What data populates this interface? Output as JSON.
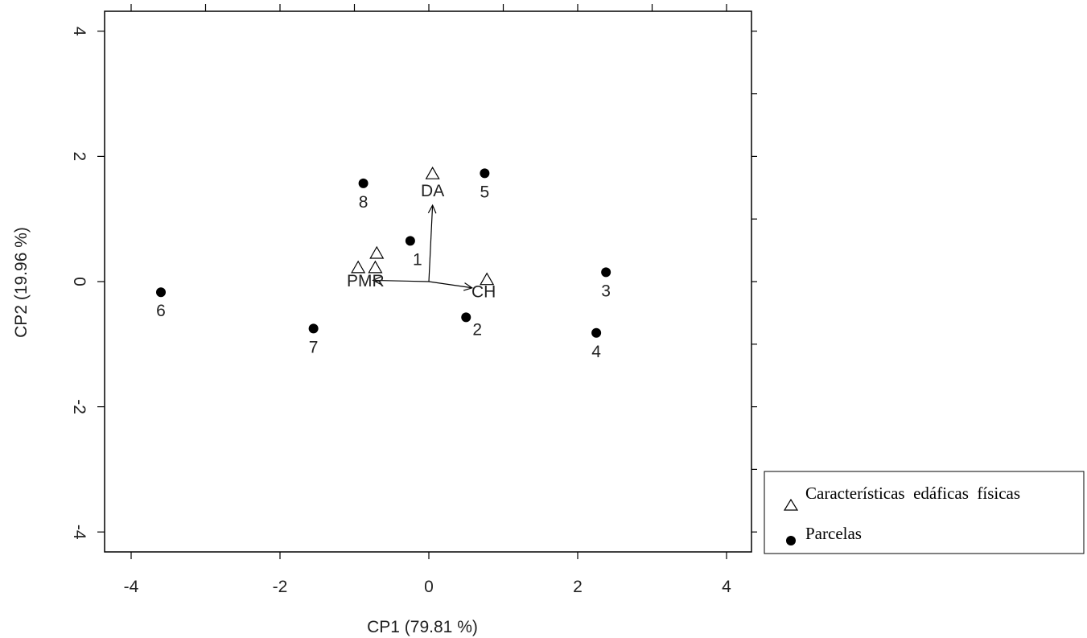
{
  "chart_data": {
    "type": "scatter",
    "xlabel": "CP1 (79.81 %)",
    "ylabel": "CP2 (19.96 %)",
    "xlim": [
      -4.3,
      4.3
    ],
    "ylim": [
      -4.3,
      4.3
    ],
    "x_ticks": [
      -4,
      -2,
      0,
      2,
      4
    ],
    "y_ticks": [
      4,
      2,
      0,
      -2,
      -4
    ],
    "x_tick_labels": [
      "-4",
      "-2",
      "0",
      "2",
      "4"
    ],
    "y_tick_labels": [
      "4",
      "2",
      "0",
      "-2",
      "-4"
    ],
    "grid": false,
    "series": [
      {
        "name": "Parcelas",
        "marker": "filled-circle",
        "points": [
          {
            "label": "1",
            "x": -0.25,
            "y": 0.65
          },
          {
            "label": "2",
            "x": 0.5,
            "y": -0.57
          },
          {
            "label": "3",
            "x": 2.38,
            "y": 0.15
          },
          {
            "label": "4",
            "x": 2.25,
            "y": -0.82
          },
          {
            "label": "5",
            "x": 0.75,
            "y": 1.73
          },
          {
            "label": "6",
            "x": -3.6,
            "y": -0.17
          },
          {
            "label": "7",
            "x": -1.55,
            "y": -0.75
          },
          {
            "label": "8",
            "x": -0.88,
            "y": 1.57
          }
        ]
      },
      {
        "name": "Características edáficas físicas",
        "marker": "open-triangle",
        "points": [
          {
            "label": "DA",
            "x": 0.05,
            "y": 1.72
          },
          {
            "label": "CH",
            "x": 0.78,
            "y": 0.03
          },
          {
            "label": "",
            "x": -0.95,
            "y": 0.22
          },
          {
            "label": "",
            "x": -0.72,
            "y": 0.22
          },
          {
            "label": "",
            "x": -0.7,
            "y": 0.45
          }
        ]
      }
    ],
    "overlap_label": "PMR",
    "vectors": [
      {
        "name": "DA",
        "x": 0.05,
        "y": 1.22
      },
      {
        "name": "CH",
        "x": 0.58,
        "y": -0.1
      },
      {
        "name": "PMR",
        "x": -0.75,
        "y": 0.02
      }
    ],
    "legend": {
      "placement": "bottom-right outside",
      "entries": [
        {
          "symbol": "open-triangle",
          "text": "Características  edáficas  físicas"
        },
        {
          "symbol": "filled-circle",
          "text": "Parcelas"
        }
      ]
    },
    "colors": {
      "ink": "#000000",
      "background": "#ffffff"
    }
  }
}
